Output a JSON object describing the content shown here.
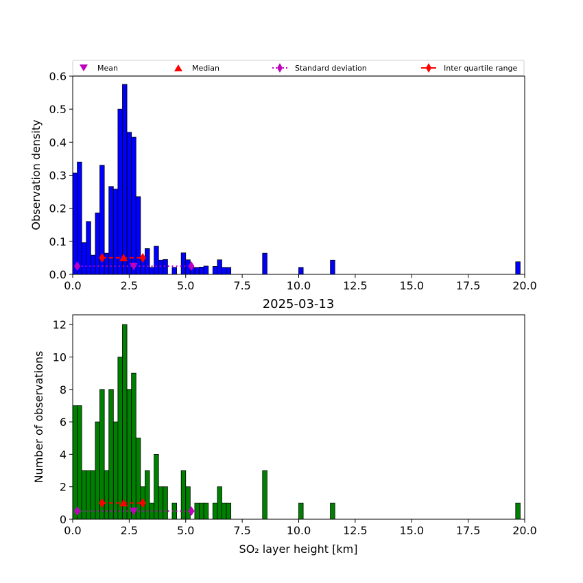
{
  "chart_data": [
    {
      "type": "bar",
      "panel": "top",
      "title": "",
      "xlabel": "",
      "ylabel": "Observation density",
      "xlim": [
        0,
        20
      ],
      "ylim": [
        0,
        0.6
      ],
      "xticks": [
        "0.0",
        "2.5",
        "5.0",
        "7.5",
        "10.0",
        "12.5",
        "15.0",
        "17.5",
        "20.0"
      ],
      "yticks": [
        "0.0",
        "0.1",
        "0.2",
        "0.3",
        "0.4",
        "0.5",
        "0.6"
      ],
      "xtick_values": [
        0,
        2.5,
        5,
        7.5,
        10,
        12.5,
        15,
        17.5,
        20
      ],
      "ytick_values": [
        0,
        0.1,
        0.2,
        0.3,
        0.4,
        0.5,
        0.6
      ],
      "bar_color": "#0000ff",
      "bin_width": 0.2,
      "bin_edges_left": [
        0.0,
        0.2,
        0.4,
        0.6,
        0.8,
        1.0,
        1.2,
        1.4,
        1.6,
        1.8,
        2.0,
        2.2,
        2.4,
        2.6,
        2.8,
        3.0,
        3.2,
        3.4,
        3.6,
        3.8,
        4.0,
        4.2,
        4.4,
        4.6,
        4.8,
        5.0,
        5.2,
        5.4,
        5.6,
        5.8,
        6.0,
        6.2,
        6.4,
        6.6,
        6.8,
        7.0,
        8.4,
        10.0,
        11.4,
        19.6
      ],
      "values": [
        0.307,
        0.34,
        0.096,
        0.16,
        0.058,
        0.186,
        0.33,
        0.064,
        0.266,
        0.258,
        0.5,
        0.575,
        0.43,
        0.415,
        0.235,
        0.044,
        0.078,
        0.021,
        0.085,
        0.043,
        0.045,
        0.0,
        0.021,
        0.0,
        0.065,
        0.044,
        0.021,
        0.021,
        0.022,
        0.025,
        0.0,
        0.024,
        0.044,
        0.021,
        0.021,
        0.0,
        0.064,
        0.021,
        0.043,
        0.038
      ],
      "markers": {
        "mean": {
          "x": 2.7,
          "y": 0.025
        },
        "median": {
          "x": 2.25,
          "y": 0.05
        },
        "std": {
          "x": [
            0.2,
            5.25
          ],
          "y": 0.025
        },
        "iqr": {
          "x": [
            1.3,
            3.1
          ],
          "y": 0.05
        }
      }
    },
    {
      "type": "bar",
      "panel": "bottom",
      "title": "2025-03-13",
      "xlabel": "SO₂ layer height [km]",
      "ylabel": "Number of observations",
      "xlim": [
        0,
        20
      ],
      "ylim": [
        0,
        12.6
      ],
      "xticks": [
        "0.0",
        "2.5",
        "5.0",
        "7.5",
        "10.0",
        "12.5",
        "15.0",
        "17.5",
        "20.0"
      ],
      "yticks": [
        "0",
        "2",
        "4",
        "6",
        "8",
        "10",
        "12"
      ],
      "xtick_values": [
        0,
        2.5,
        5,
        7.5,
        10,
        12.5,
        15,
        17.5,
        20
      ],
      "ytick_values": [
        0,
        2,
        4,
        6,
        8,
        10,
        12
      ],
      "bar_color": "#008000",
      "bin_width": 0.2,
      "bin_edges_left": [
        0.0,
        0.2,
        0.4,
        0.6,
        0.8,
        1.0,
        1.2,
        1.4,
        1.6,
        1.8,
        2.0,
        2.2,
        2.4,
        2.6,
        2.8,
        3.0,
        3.2,
        3.4,
        3.6,
        3.8,
        4.0,
        4.4,
        4.8,
        5.0,
        5.4,
        5.6,
        5.8,
        6.2,
        6.4,
        6.6,
        6.8,
        8.4,
        10.0,
        11.4,
        19.6
      ],
      "values": [
        7,
        7,
        3,
        3,
        3,
        6,
        8,
        3,
        8,
        6,
        10,
        12,
        8,
        9,
        5,
        2,
        3,
        1,
        4,
        2,
        2,
        1,
        3,
        2,
        1,
        1,
        1,
        1,
        2,
        1,
        1,
        3,
        1,
        1,
        1
      ],
      "markers": {
        "mean": {
          "x": 2.7,
          "y": 0.5
        },
        "median": {
          "x": 2.25,
          "y": 1.0
        },
        "std": {
          "x": [
            0.2,
            5.25
          ],
          "y": 0.5
        },
        "iqr": {
          "x": [
            1.3,
            3.1
          ],
          "y": 1.0
        }
      }
    }
  ],
  "legend": {
    "placement": "above-top-panel",
    "items": [
      {
        "label": "Mean",
        "marker": "triangle-down",
        "color": "#bf00bf"
      },
      {
        "label": "Median",
        "marker": "triangle-up",
        "color": "#ff0000"
      },
      {
        "label": "Standard deviation",
        "marker": "diamond-dotted-line",
        "color": "#bf00bf"
      },
      {
        "label": "Inter quartile range",
        "marker": "diamond-solid-line",
        "color": "#ff0000"
      }
    ]
  },
  "colors": {
    "mean": "#bf00bf",
    "median": "#ff0000",
    "std": "#bf00bf",
    "iqr": "#ff0000"
  }
}
